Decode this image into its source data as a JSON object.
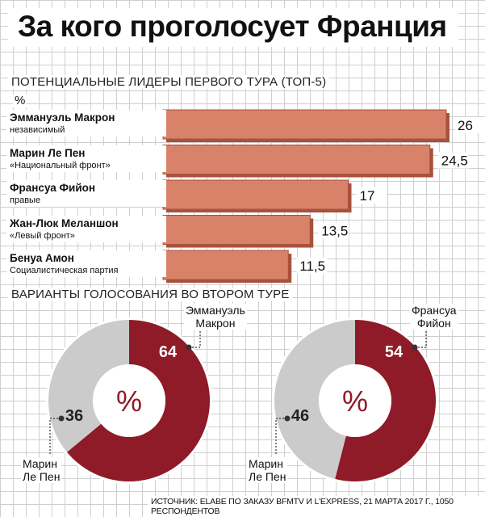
{
  "title": "За кого проголосует Франция",
  "subtitle": "ПОТЕНЦИАЛЬНЫЕ ЛИДЕРЫ ПЕРВОГО ТУРА (ТОП-5)",
  "unit": "%",
  "second_round_title": "ВАРИАНТЫ ГОЛОСОВАНИЯ ВО ВТОРОМ ТУРЕ",
  "source": "ИСТОЧНИК: ELABE ПО ЗАКАЗУ BFMTV И L'EXPRESS, 21 МАРТА 2017 Г., 1050 РЕСПОНДЕНТОВ",
  "colors": {
    "bar": "#d9826a",
    "bar_edge": "#a8513d",
    "winner": "#8e1b27",
    "other": "#cbcbcb"
  },
  "chart_data": [
    {
      "type": "bar",
      "title": "ПОТЕНЦИАЛЬНЫЕ ЛИДЕРЫ ПЕРВОГО ТУРА (ТОП-5)",
      "categories": [
        "Эммануэль Макрон",
        "Марин Ле Пен",
        "Франсуа Фийон",
        "Жан-Люк Меланшон",
        "Бенуа Амон"
      ],
      "parties": [
        "независимый",
        "«Национальный фронт»",
        "правые",
        "«Левый фронт»",
        "Социалистическая партия"
      ],
      "values": [
        26,
        24.5,
        17,
        13.5,
        11.5
      ],
      "value_labels": [
        "26",
        "24,5",
        "17",
        "13,5",
        "11,5"
      ],
      "ylabel": "%"
    },
    {
      "type": "pie",
      "labels": [
        "Эммануэль Макрон",
        "Марин Ле Пен"
      ],
      "values": [
        64,
        36
      ],
      "label_lines": [
        [
          "Эммануэль",
          "Макрон"
        ],
        [
          "Марин",
          "Ле Пен"
        ]
      ],
      "center_label": "%"
    },
    {
      "type": "pie",
      "labels": [
        "Франсуа Фийон",
        "Марин Ле Пен"
      ],
      "values": [
        54,
        46
      ],
      "label_lines": [
        [
          "Франсуа",
          "Фийон"
        ],
        [
          "Марин",
          "Ле Пен"
        ]
      ],
      "center_label": "%"
    }
  ]
}
